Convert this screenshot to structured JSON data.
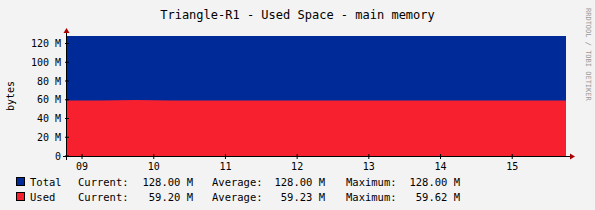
{
  "chart_data": {
    "type": "area",
    "title": "Triangle-R1 - Used Space - main memory",
    "y_label": "bytes",
    "annotations": [
      "RRDTOOL / TOBI OETIKER"
    ],
    "x": [
      8.79,
      9.25,
      9.75,
      10.25,
      10.75,
      11.25,
      11.75,
      12.25,
      12.75,
      13.25,
      13.75,
      14.25,
      14.75,
      15.25,
      15.75
    ],
    "xlim": [
      8.79,
      15.75
    ],
    "xticks": [
      {
        "value": 9,
        "label": "09"
      },
      10,
      11,
      12,
      13,
      14,
      15
    ],
    "ylim": [
      0,
      128
    ],
    "yticks": [
      0,
      {
        "value": 20,
        "label": "20 M"
      },
      {
        "value": 40,
        "label": "40 M"
      },
      {
        "value": 60,
        "label": "60 M"
      },
      {
        "value": 80,
        "label": "80 M"
      },
      {
        "value": 100,
        "label": "100 M"
      },
      {
        "value": 120,
        "label": "120 M"
      }
    ],
    "grid": false,
    "stacked": false,
    "stat_labels": [
      "Current:",
      "Average:",
      "Maximum:"
    ],
    "series": [
      {
        "name": "Total",
        "color": "#002a97",
        "values": [
          128,
          128,
          128,
          128,
          128,
          128,
          128,
          128,
          128,
          128,
          128,
          128,
          128,
          128,
          128
        ],
        "stats": [
          {
            "value": 128,
            "label": "128.00 M"
          },
          {
            "value": 128,
            "label": "128.00 M"
          },
          {
            "value": 128,
            "label": "128.00 M"
          }
        ]
      },
      {
        "name": "Used",
        "color": "#f7202f",
        "values": [
          59.25,
          59.3,
          59.62,
          59.3,
          59.22,
          59.2,
          59.24,
          59.2,
          59.21,
          59.22,
          59.2,
          59.23,
          59.2,
          59.21,
          59.2
        ],
        "stats": [
          {
            "value": 59.2,
            "label": "59.20 M"
          },
          {
            "value": 59.23,
            "label": "59.23 M"
          },
          {
            "value": 59.62,
            "label": "59.62 M"
          }
        ]
      }
    ]
  }
}
